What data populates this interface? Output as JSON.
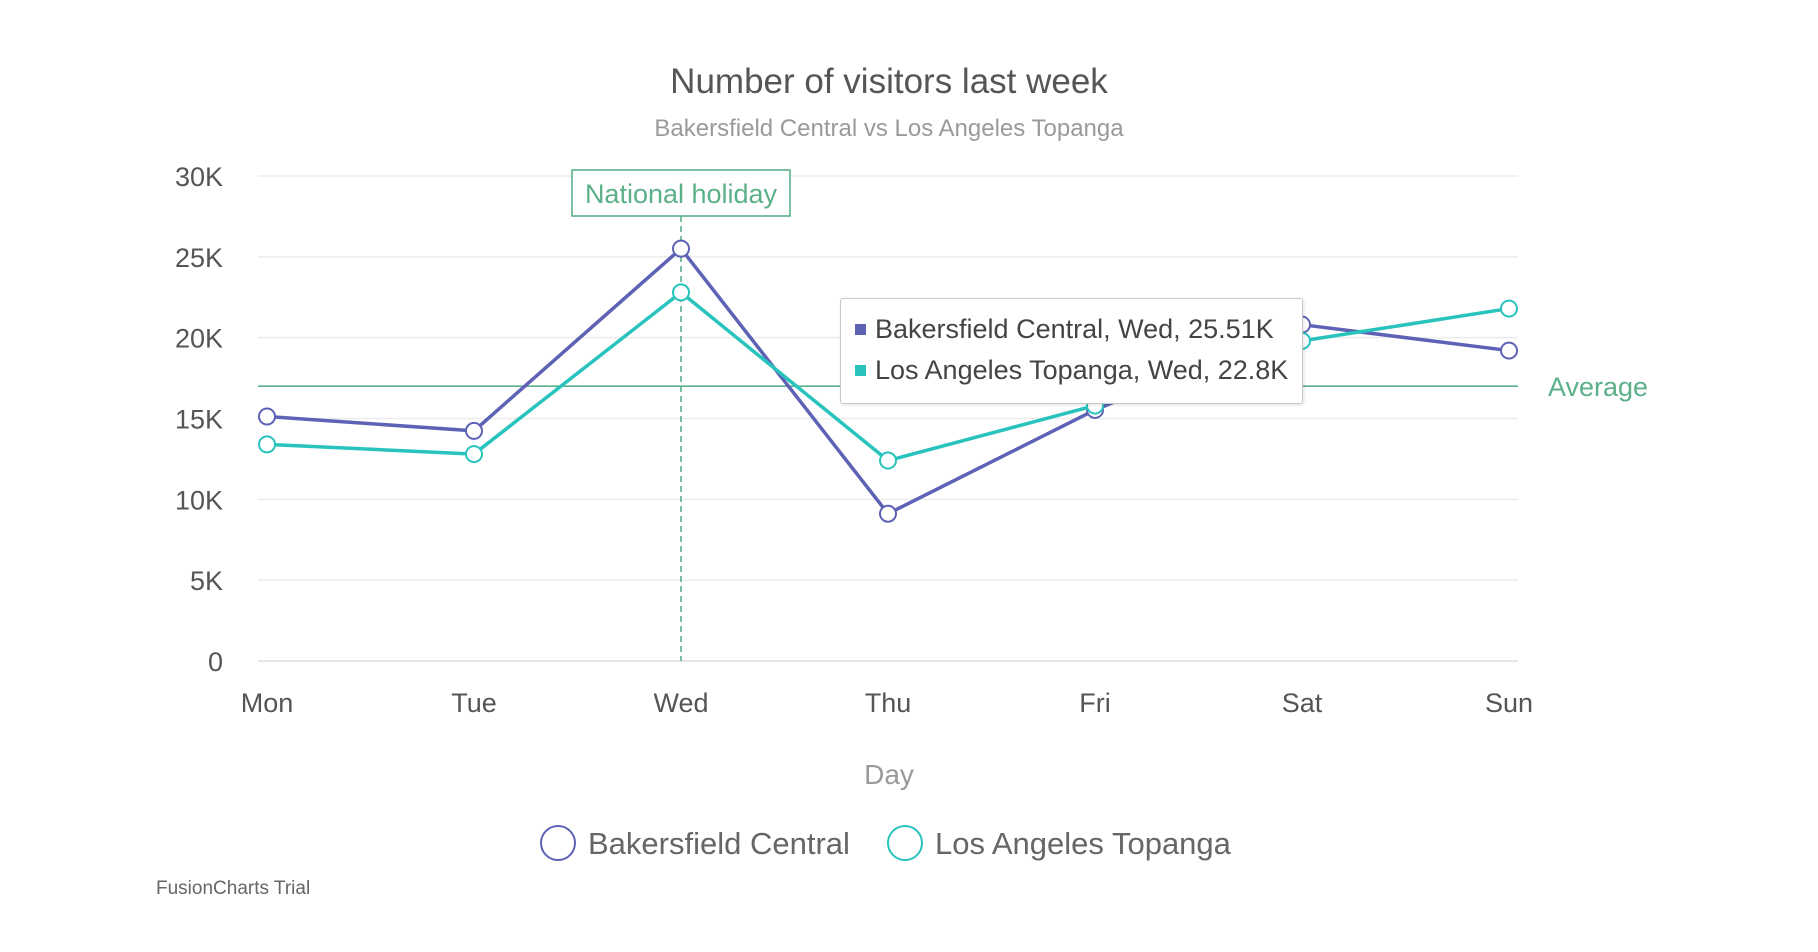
{
  "chart_data": {
    "type": "line",
    "title": "Number of visitors last week",
    "subtitle": "Bakersfield Central vs Los Angeles Topanga",
    "xlabel": "Day",
    "ylabel": "",
    "categories": [
      "Mon",
      "Tue",
      "Wed",
      "Thu",
      "Fri",
      "Sat",
      "Sun"
    ],
    "ylim": [
      0,
      30000
    ],
    "yticks": [
      {
        "value": 0,
        "label": "0"
      },
      {
        "value": 5000,
        "label": "5K"
      },
      {
        "value": 10000,
        "label": "10K"
      },
      {
        "value": 15000,
        "label": "15K"
      },
      {
        "value": 20000,
        "label": "20K"
      },
      {
        "value": 25000,
        "label": "25K"
      },
      {
        "value": 30000,
        "label": "30K"
      }
    ],
    "grid": true,
    "series": [
      {
        "name": "Bakersfield Central",
        "color": "#5d62b5",
        "values": [
          15123,
          14233,
          25507,
          9110,
          15529,
          20803,
          19202
        ]
      },
      {
        "name": "Los Angeles Topanga",
        "color": "#29c3be",
        "values": [
          13400,
          12800,
          22800,
          12400,
          15800,
          19800,
          21800
        ]
      }
    ],
    "trendline": {
      "label": "Average",
      "value": 17000,
      "color": "#5bb08a"
    },
    "vline": {
      "label": "National holiday",
      "category": "Wed",
      "color": "#5bb08a"
    },
    "legend": {
      "position": "bottom"
    },
    "tooltip": {
      "category": "Wed",
      "rows": [
        {
          "text": "Bakersfield Central, Wed, 25.51K",
          "color": "#5d62b5"
        },
        {
          "text": "Los Angeles Topanga, Wed, 22.8K",
          "color": "#29c3be"
        }
      ]
    }
  },
  "watermark": "FusionCharts Trial"
}
